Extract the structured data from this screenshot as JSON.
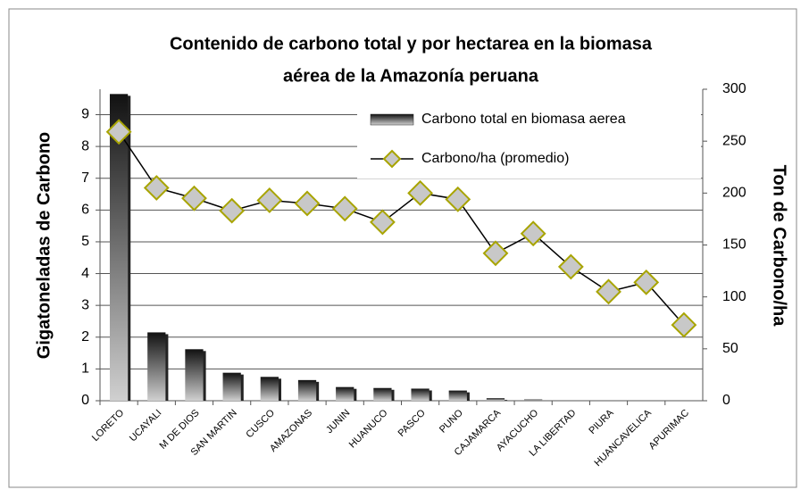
{
  "chart_data": {
    "type": "bar_line",
    "title": [
      "Contenido de carbono total y por hectarea en la biomasa",
      "aérea de la Amazonía peruana"
    ],
    "ylabel": "Gigatoneladas de Carbono",
    "y2label": "Ton de Carbono/ha",
    "categories": [
      "LORETO",
      "UCAYALI",
      "M DE DIOS",
      "SAN MARTIN",
      "CUSCO",
      "AMAZONAS",
      "JUNIN",
      "HUANUCO",
      "PASCO",
      "PUNO",
      "CAJAMARCA",
      "AYACUCHO",
      "LA LIBERTAD",
      "PIURA",
      "HUANCAVELICA",
      "APURIMAC"
    ],
    "series": [
      {
        "name": "Carbono total en biomasa aerea",
        "type": "bar",
        "color": "#222222",
        "values": [
          9.65,
          2.15,
          1.62,
          0.88,
          0.75,
          0.65,
          0.43,
          0.4,
          0.38,
          0.32,
          0.08,
          0.04,
          0,
          0,
          0,
          0
        ]
      },
      {
        "name": "Carbono/ha (promedio)",
        "type": "line",
        "axis": "y2",
        "color": "#000000",
        "marker_color": "#c8c8c8",
        "marker_edge_color": "#a8a400",
        "values": [
          259,
          205,
          195,
          183,
          193,
          190,
          185,
          172,
          200,
          194,
          142,
          161,
          129,
          105,
          114,
          73
        ]
      }
    ],
    "ylim": [
      0,
      9.8
    ],
    "yticks": [
      0,
      1,
      2,
      3,
      4,
      5,
      6,
      7,
      8,
      9
    ],
    "y2lim": [
      0,
      300
    ],
    "y2ticks": [
      0,
      50,
      100,
      150,
      200,
      250,
      300
    ],
    "grid": true,
    "legend": "upper right"
  }
}
